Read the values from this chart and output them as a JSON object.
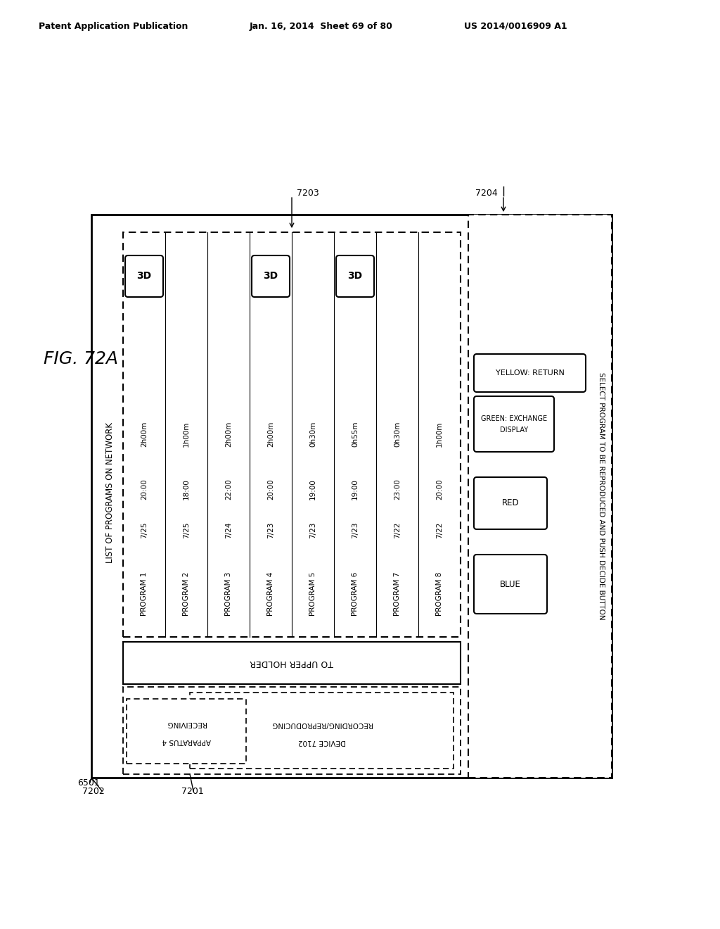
{
  "header_left": "Patent Application Publication",
  "header_mid": "Jan. 16, 2014  Sheet 69 of 80",
  "header_right": "US 2014/0016909 A1",
  "fig_label": "FIG. 72A",
  "programs": [
    {
      "name": "PROGRAM 1",
      "date": "7/25",
      "time": "20:00",
      "dur": "2h00m",
      "is3d": true
    },
    {
      "name": "PROGRAM 2",
      "date": "7/25",
      "time": "18:00",
      "dur": "1h00m",
      "is3d": false
    },
    {
      "name": "PROGRAM 3",
      "date": "7/24",
      "time": "22:00",
      "dur": "2h00m",
      "is3d": false
    },
    {
      "name": "PROGRAM 4",
      "date": "7/23",
      "time": "20:00",
      "dur": "2h00m",
      "is3d": true
    },
    {
      "name": "PROGRAM 5",
      "date": "7/23",
      "time": "19:00",
      "dur": "0h30m",
      "is3d": false
    },
    {
      "name": "PROGRAM 6",
      "date": "7/23",
      "time": "19:00",
      "dur": "0h55m",
      "is3d": true
    },
    {
      "name": "PROGRAM 7",
      "date": "7/22",
      "time": "23:00",
      "dur": "0h30m",
      "is3d": false
    },
    {
      "name": "PROGRAM 8",
      "date": "7/22",
      "time": "20:00",
      "dur": "1h00m",
      "is3d": false
    }
  ],
  "list_title": "LIST OF PROGRAMS ON NETWORK",
  "to_upper": "TO UPPER HOLDER",
  "rec_device_line1": "RECORDING/REPRODUCING",
  "rec_device_line2": "DEVICE 7102",
  "recv_app_line1": "RECEIVING",
  "recv_app_line2": "APPARATUS 4",
  "select_text": "SELECT PROGRAM TO BE REPRODUCED AND PUSH DECIDE BUTTON",
  "blue_label": "BLUE",
  "red_label": "RED",
  "green_line1": "GREEN: EXCHANGE",
  "green_line2": "DISPLAY",
  "yellow_label": "YELLOW: RETURN",
  "label_7201": "7201",
  "label_7202": "7202",
  "label_7203": "7203",
  "label_7204": "7204",
  "label_6501": "6501"
}
